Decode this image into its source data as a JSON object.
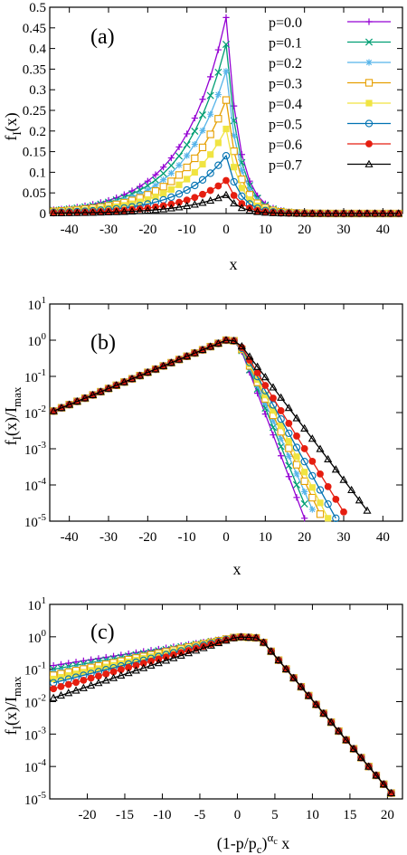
{
  "chart_data": [
    {
      "type": "line",
      "panel_label": "(a)",
      "xlabel": "x",
      "ylabel": "f",
      "ylabel_sub": "I",
      "ylabel_tail": "(x)",
      "xlim": [
        -45,
        45
      ],
      "ylim": [
        0,
        0.5
      ],
      "yscale": "linear",
      "xticks": [
        -40,
        -30,
        -20,
        -10,
        0,
        10,
        20,
        30,
        40
      ],
      "yticks": [
        0,
        0.05,
        0.1,
        0.15,
        0.2,
        0.25,
        0.3,
        0.35,
        0.4,
        0.45,
        0.5
      ],
      "ytick_labels": [
        "0",
        "0.05",
        "0.1",
        "0.15",
        "0.2",
        "0.25",
        "0.3",
        "0.35",
        "0.4",
        "0.45",
        "0.5"
      ],
      "legend": "top-right",
      "series": [
        {
          "name": "p=0.0",
          "color": "#9400d3",
          "marker": "plus",
          "peak": 0.475
        },
        {
          "name": "p=0.1",
          "color": "#009e73",
          "marker": "cross",
          "peak": 0.41
        },
        {
          "name": "p=0.2",
          "color": "#56b4e9",
          "marker": "star",
          "peak": 0.345
        },
        {
          "name": "p=0.3",
          "color": "#e69f00",
          "marker": "open-square",
          "peak": 0.275
        },
        {
          "name": "p=0.4",
          "color": "#f0e442",
          "marker": "filled-square",
          "peak": 0.205
        },
        {
          "name": "p=0.5",
          "color": "#0072b2",
          "marker": "open-circle",
          "peak": 0.14
        },
        {
          "name": "p=0.6",
          "color": "#e51e10",
          "marker": "filled-circle",
          "peak": 0.08
        },
        {
          "name": "p=0.7",
          "color": "#000000",
          "marker": "open-triangle",
          "peak": 0.045
        }
      ]
    },
    {
      "type": "line",
      "panel_label": "(b)",
      "xlabel": "x",
      "ylabel": "f",
      "ylabel_sub": "I",
      "ylabel_tail": "(x)/I",
      "ylabel_sub2": "max",
      "xlim": [
        -45,
        45
      ],
      "ylim": [
        1e-05,
        10
      ],
      "yscale": "log",
      "xticks": [
        -40,
        -30,
        -20,
        -10,
        0,
        10,
        20,
        30,
        40
      ],
      "yticks_exponents": [
        1,
        0,
        -1,
        -2,
        -3,
        -4,
        -5
      ],
      "ytick_base": "10",
      "series_cutoff_x": [
        20,
        21.5,
        23,
        24.5,
        26,
        28,
        31,
        37.5
      ]
    },
    {
      "type": "line",
      "panel_label": "(c)",
      "xlabel": "(1-p/p",
      "xlabel_sub": "c",
      "xlabel_mid": ")",
      "xlabel_sup": "α",
      "xlabel_sup_sub": "c",
      "xlabel_tail": " x",
      "ylabel": "f",
      "ylabel_sub": "I",
      "ylabel_tail": "(x)/I",
      "ylabel_sub2": "max",
      "xlim": [
        -25,
        22
      ],
      "ylim": [
        1e-05,
        10
      ],
      "yscale": "log",
      "xticks": [
        -20,
        -15,
        -10,
        -5,
        0,
        5,
        10,
        15,
        20
      ],
      "yticks_exponents": [
        1,
        0,
        -1,
        -2,
        -3,
        -4,
        -5
      ],
      "ytick_base": "10",
      "left_end_values": [
        0.13,
        0.1,
        0.08,
        0.065,
        0.05,
        0.038,
        0.025,
        0.013
      ]
    }
  ]
}
